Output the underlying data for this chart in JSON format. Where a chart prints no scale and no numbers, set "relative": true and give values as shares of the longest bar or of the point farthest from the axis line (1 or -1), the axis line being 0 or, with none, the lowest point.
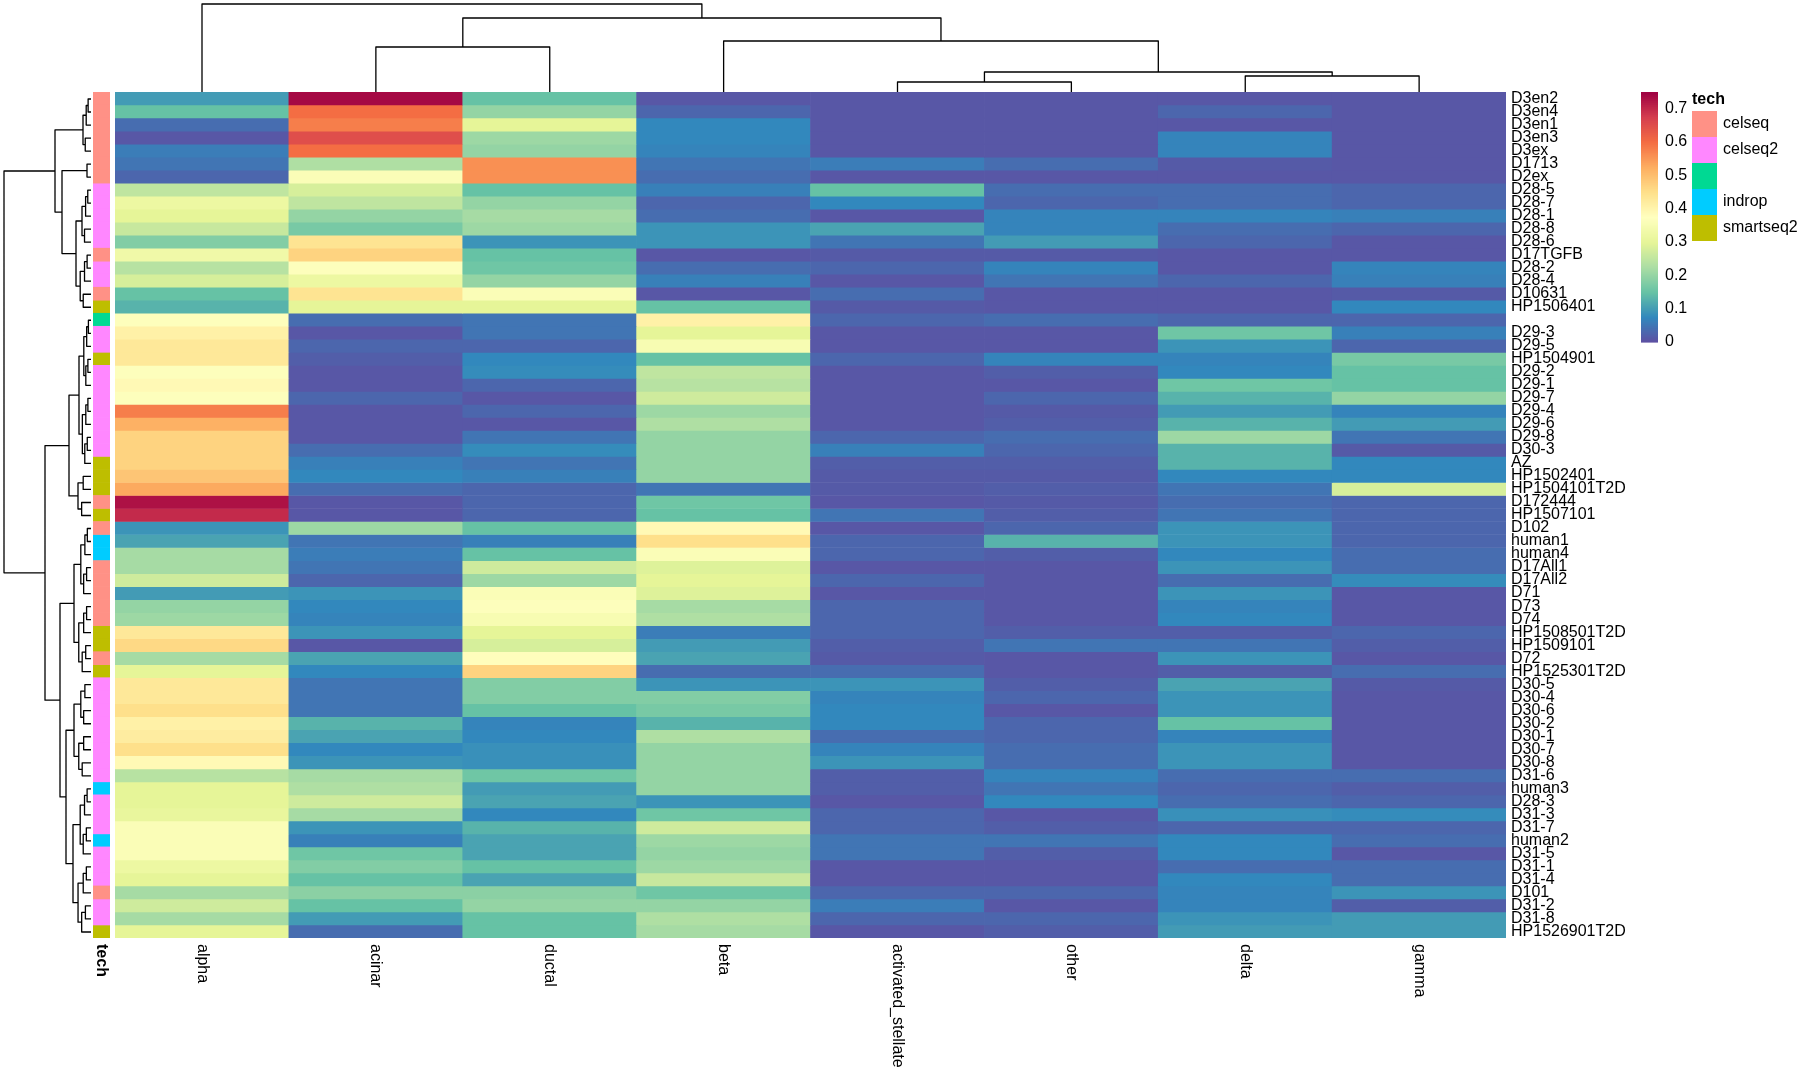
{
  "chart_data": [
    {
      "type": "heatmap",
      "categories": [
        "alpha",
        "acinar",
        "ductal",
        "beta",
        "activated_stellate",
        "other",
        "delta",
        "gamma"
      ],
      "y_categories": [
        "D3en2",
        "D3en4",
        "D3en1",
        "D3en3",
        "D3ex",
        "D1713",
        "D2ex",
        "D28-5",
        "D28-7",
        "D28-1",
        "D28-8",
        "D28-6",
        "D17TGFB",
        "D28-2",
        "D28-4",
        "D10631",
        "HP1506401",
        null,
        "D29-3",
        "D29-5",
        "HP1504901",
        "D29-2",
        "D29-1",
        "D29-7",
        "D29-4",
        "D29-6",
        "D29-8",
        "D30-3",
        "AZ",
        "HP1502401",
        "HP1504101T2D",
        "D172444",
        "HP1507101",
        "D102",
        "human1",
        "human4",
        "D17All1",
        "D17All2",
        "D71",
        "D73",
        "D74",
        "HP1508501T2D",
        "HP1509101",
        "D72",
        "HP1525301T2D",
        "D30-5",
        "D30-4",
        "D30-6",
        "D30-2",
        "D30-1",
        "D30-7",
        "D30-8",
        "D31-6",
        "human3",
        "D28-3",
        "D31-3",
        "D31-7",
        "human2",
        "D31-5",
        "D31-1",
        "D31-4",
        "D101",
        "D31-2",
        "D31-8",
        "HP1526901T2D"
      ],
      "cells": [
        [
          0.1,
          0.74,
          0.15,
          0.01,
          0.01,
          0.01,
          0.01,
          0.01
        ],
        [
          0.15,
          0.6,
          0.2,
          0.03,
          0.01,
          0.01,
          0.03,
          0.01
        ],
        [
          0.04,
          0.58,
          0.3,
          0.075,
          0.01,
          0.01,
          0.01,
          0.01
        ],
        [
          0.01,
          0.65,
          0.21,
          0.075,
          0.01,
          0.01,
          0.07,
          0.01
        ],
        [
          0.06,
          0.6,
          0.2,
          0.07,
          0.01,
          0.01,
          0.07,
          0.01
        ],
        [
          0.05,
          0.23,
          0.56,
          0.05,
          0.06,
          0.04,
          0.015,
          0.01
        ],
        [
          0.03,
          0.36,
          0.56,
          0.04,
          0.01,
          0.01,
          0.01,
          0.01
        ],
        [
          0.25,
          0.28,
          0.15,
          0.065,
          0.15,
          0.04,
          0.04,
          0.03
        ],
        [
          0.32,
          0.25,
          0.2,
          0.03,
          0.075,
          0.03,
          0.04,
          0.03
        ],
        [
          0.3,
          0.2,
          0.22,
          0.04,
          0.01,
          0.07,
          0.07,
          0.065
        ],
        [
          0.26,
          0.17,
          0.21,
          0.09,
          0.11,
          0.07,
          0.04,
          0.03
        ],
        [
          0.18,
          0.44,
          0.09,
          0.09,
          0.05,
          0.1,
          0.03,
          0.01
        ],
        [
          0.33,
          0.47,
          0.15,
          0.01,
          0.015,
          0.015,
          0.01,
          0.01
        ],
        [
          0.24,
          0.37,
          0.16,
          0.04,
          0.03,
          0.07,
          0.01,
          0.07
        ],
        [
          0.28,
          0.32,
          0.2,
          0.065,
          0.01,
          0.05,
          0.03,
          0.065
        ],
        [
          0.15,
          0.44,
          0.36,
          0.01,
          0.04,
          0.01,
          0.01,
          0.015
        ],
        [
          0.13,
          0.3,
          0.3,
          0.15,
          0.015,
          0.01,
          0.01,
          0.075
        ],
        [
          0.37,
          0.04,
          0.05,
          0.41,
          0.03,
          0.04,
          0.03,
          0.03
        ],
        [
          0.41,
          0.01,
          0.05,
          0.3,
          0.01,
          0.01,
          0.16,
          0.065
        ],
        [
          0.43,
          0.03,
          0.03,
          0.35,
          0.01,
          0.01,
          0.09,
          0.03
        ],
        [
          0.43,
          0.02,
          0.075,
          0.15,
          0.03,
          0.07,
          0.07,
          0.17
        ],
        [
          0.37,
          0.01,
          0.08,
          0.25,
          0.01,
          0.02,
          0.075,
          0.15
        ],
        [
          0.39,
          0.01,
          0.03,
          0.24,
          0.01,
          0.01,
          0.16,
          0.15
        ],
        [
          0.37,
          0.03,
          0.01,
          0.27,
          0.01,
          0.03,
          0.13,
          0.2
        ],
        [
          0.58,
          0.01,
          0.03,
          0.21,
          0.01,
          0.015,
          0.1,
          0.07
        ],
        [
          0.52,
          0.01,
          0.01,
          0.23,
          0.01,
          0.02,
          0.13,
          0.1
        ],
        [
          0.47,
          0.01,
          0.05,
          0.2,
          0.03,
          0.04,
          0.21,
          0.05
        ],
        [
          0.47,
          0.04,
          0.08,
          0.2,
          0.065,
          0.03,
          0.13,
          0.015
        ],
        [
          0.47,
          0.065,
          0.05,
          0.2,
          0.02,
          0.02,
          0.13,
          0.075
        ],
        [
          0.49,
          0.075,
          0.065,
          0.2,
          0.015,
          0.015,
          0.075,
          0.075
        ],
        [
          0.53,
          0.04,
          0.03,
          0.05,
          0.015,
          0.02,
          0.05,
          0.28
        ],
        [
          0.73,
          0.01,
          0.03,
          0.16,
          0.01,
          0.015,
          0.04,
          0.03
        ],
        [
          0.7,
          0.01,
          0.03,
          0.15,
          0.05,
          0.02,
          0.05,
          0.03
        ],
        [
          0.09,
          0.21,
          0.15,
          0.39,
          0.01,
          0.03,
          0.09,
          0.03
        ],
        [
          0.11,
          0.05,
          0.065,
          0.45,
          0.03,
          0.13,
          0.09,
          0.03
        ],
        [
          0.22,
          0.06,
          0.15,
          0.36,
          0.03,
          0.02,
          0.075,
          0.04
        ],
        [
          0.22,
          0.05,
          0.27,
          0.29,
          0.01,
          0.01,
          0.09,
          0.04
        ],
        [
          0.27,
          0.03,
          0.21,
          0.3,
          0.03,
          0.01,
          0.04,
          0.08
        ],
        [
          0.1,
          0.09,
          0.36,
          0.29,
          0.01,
          0.01,
          0.09,
          0.01
        ],
        [
          0.2,
          0.075,
          0.37,
          0.22,
          0.03,
          0.01,
          0.07,
          0.01
        ],
        [
          0.21,
          0.07,
          0.35,
          0.23,
          0.03,
          0.01,
          0.075,
          0.01
        ],
        [
          0.43,
          0.09,
          0.3,
          0.06,
          0.03,
          0.02,
          0.02,
          0.03
        ],
        [
          0.46,
          0.01,
          0.28,
          0.1,
          0.02,
          0.05,
          0.05,
          0.02
        ],
        [
          0.22,
          0.11,
          0.38,
          0.11,
          0.015,
          0.01,
          0.09,
          0.01
        ],
        [
          0.3,
          0.075,
          0.47,
          0.04,
          0.04,
          0.01,
          0.02,
          0.04
        ],
        [
          0.43,
          0.05,
          0.18,
          0.09,
          0.09,
          0.02,
          0.11,
          0.015
        ],
        [
          0.43,
          0.05,
          0.18,
          0.18,
          0.07,
          0.03,
          0.09,
          0.01
        ],
        [
          0.45,
          0.05,
          0.15,
          0.17,
          0.075,
          0.01,
          0.09,
          0.01
        ],
        [
          0.41,
          0.13,
          0.07,
          0.13,
          0.075,
          0.03,
          0.15,
          0.01
        ],
        [
          0.42,
          0.11,
          0.075,
          0.23,
          0.04,
          0.03,
          0.07,
          0.01
        ],
        [
          0.45,
          0.075,
          0.085,
          0.2,
          0.07,
          0.04,
          0.09,
          0.01
        ],
        [
          0.39,
          0.09,
          0.085,
          0.2,
          0.09,
          0.04,
          0.09,
          0.01
        ],
        [
          0.24,
          0.22,
          0.16,
          0.2,
          0.02,
          0.07,
          0.04,
          0.04
        ],
        [
          0.3,
          0.23,
          0.1,
          0.2,
          0.02,
          0.05,
          0.03,
          0.02
        ],
        [
          0.3,
          0.27,
          0.11,
          0.09,
          0.01,
          0.075,
          0.04,
          0.03
        ],
        [
          0.31,
          0.22,
          0.075,
          0.16,
          0.03,
          0.01,
          0.085,
          0.08
        ],
        [
          0.36,
          0.09,
          0.13,
          0.27,
          0.03,
          0.02,
          0.03,
          0.03
        ],
        [
          0.36,
          0.065,
          0.11,
          0.21,
          0.05,
          0.05,
          0.075,
          0.04
        ],
        [
          0.36,
          0.16,
          0.11,
          0.2,
          0.05,
          0.02,
          0.075,
          0.01
        ],
        [
          0.32,
          0.18,
          0.15,
          0.21,
          0.01,
          0.01,
          0.04,
          0.04
        ],
        [
          0.3,
          0.15,
          0.11,
          0.26,
          0.01,
          0.01,
          0.075,
          0.04
        ],
        [
          0.22,
          0.19,
          0.19,
          0.16,
          0.03,
          0.03,
          0.07,
          0.09
        ],
        [
          0.27,
          0.15,
          0.2,
          0.2,
          0.06,
          0.01,
          0.07,
          0.02
        ],
        [
          0.22,
          0.1,
          0.15,
          0.23,
          0.03,
          0.03,
          0.09,
          0.1
        ],
        [
          0.3,
          0.04,
          0.15,
          0.22,
          0.01,
          0.02,
          0.1,
          0.1
        ]
      ],
      "clim": [
        0,
        0.75
      ],
      "cticks": [
        0,
        0.1,
        0.2,
        0.3,
        0.4,
        0.5,
        0.6,
        0.7
      ]
    },
    {
      "type": "bar",
      "orientation": "horizontal",
      "stacked": true,
      "relative": true,
      "ylabel": "tech",
      "categories": [
        null,
        null,
        null,
        null,
        null,
        null,
        null,
        null,
        null,
        null,
        null,
        null,
        null,
        null,
        null,
        null,
        null,
        null,
        null,
        null,
        null,
        null,
        null,
        null,
        null,
        null,
        null,
        null,
        null,
        null,
        null,
        null,
        null,
        null,
        null,
        null,
        null,
        null,
        null,
        null,
        null,
        null,
        null,
        null,
        null,
        null,
        null,
        null,
        null,
        null,
        null,
        null,
        null,
        null,
        null,
        null,
        null,
        null,
        null,
        null,
        null,
        null,
        null,
        null,
        null
      ],
      "legend": "right",
      "legend_title": "tech",
      "series": [
        {
          "name": "celseq",
          "color": "#ff9186",
          "values": [
            1,
            1,
            1,
            1,
            1,
            1,
            1,
            null,
            null,
            null,
            null,
            null,
            1,
            null,
            null,
            1,
            null,
            null,
            null,
            null,
            null,
            null,
            null,
            null,
            null,
            null,
            null,
            null,
            null,
            null,
            null,
            1,
            null,
            1,
            null,
            null,
            1,
            1,
            1,
            1,
            1,
            null,
            null,
            1,
            null,
            null,
            null,
            null,
            null,
            null,
            null,
            null,
            null,
            null,
            null,
            null,
            null,
            null,
            null,
            null,
            null,
            1,
            null,
            null,
            null
          ]
        },
        {
          "name": "celseq2",
          "color": "#ff87ff",
          "values": [
            null,
            null,
            null,
            null,
            null,
            null,
            null,
            1,
            1,
            1,
            1,
            1,
            null,
            1,
            1,
            null,
            null,
            null,
            1,
            1,
            null,
            1,
            1,
            1,
            1,
            1,
            1,
            1,
            null,
            null,
            null,
            null,
            null,
            null,
            null,
            null,
            null,
            null,
            null,
            null,
            null,
            null,
            null,
            null,
            null,
            1,
            1,
            1,
            1,
            1,
            1,
            1,
            1,
            null,
            1,
            1,
            1,
            null,
            1,
            1,
            1,
            null,
            1,
            1,
            null
          ]
        },
        {
          "color": "#00d993",
          "values": [
            null,
            null,
            null,
            null,
            null,
            null,
            null,
            null,
            null,
            null,
            null,
            null,
            null,
            null,
            null,
            null,
            null,
            1,
            null,
            null,
            null,
            null,
            null,
            null,
            null,
            null,
            null,
            null,
            null,
            null,
            null,
            null,
            null,
            null,
            null,
            null,
            null,
            null,
            null,
            null,
            null,
            null,
            null,
            null,
            null,
            null,
            null,
            null,
            null,
            null,
            null,
            null,
            null,
            null,
            null,
            null,
            null,
            null,
            null,
            null,
            null,
            null,
            null,
            null,
            null
          ]
        },
        {
          "name": "indrop",
          "color": "#00ccff",
          "values": [
            null,
            null,
            null,
            null,
            null,
            null,
            null,
            null,
            null,
            null,
            null,
            null,
            null,
            null,
            null,
            null,
            null,
            null,
            null,
            null,
            null,
            null,
            null,
            null,
            null,
            null,
            null,
            null,
            null,
            null,
            null,
            null,
            null,
            null,
            1,
            1,
            null,
            null,
            null,
            null,
            null,
            null,
            null,
            null,
            null,
            null,
            null,
            null,
            null,
            null,
            null,
            null,
            null,
            1,
            null,
            null,
            null,
            1,
            null,
            null,
            null,
            null,
            null,
            null,
            null
          ]
        },
        {
          "name": "smartseq2",
          "color": "#bebe00",
          "values": [
            null,
            null,
            null,
            null,
            null,
            null,
            null,
            null,
            null,
            null,
            null,
            null,
            null,
            null,
            null,
            null,
            1,
            null,
            null,
            null,
            1,
            null,
            null,
            null,
            null,
            null,
            null,
            null,
            1,
            1,
            1,
            null,
            1,
            null,
            null,
            null,
            null,
            null,
            null,
            null,
            null,
            1,
            1,
            null,
            1,
            null,
            null,
            null,
            null,
            null,
            null,
            null,
            null,
            null,
            null,
            null,
            null,
            null,
            null,
            null,
            null,
            null,
            null,
            null,
            1
          ]
        }
      ]
    }
  ]
}
